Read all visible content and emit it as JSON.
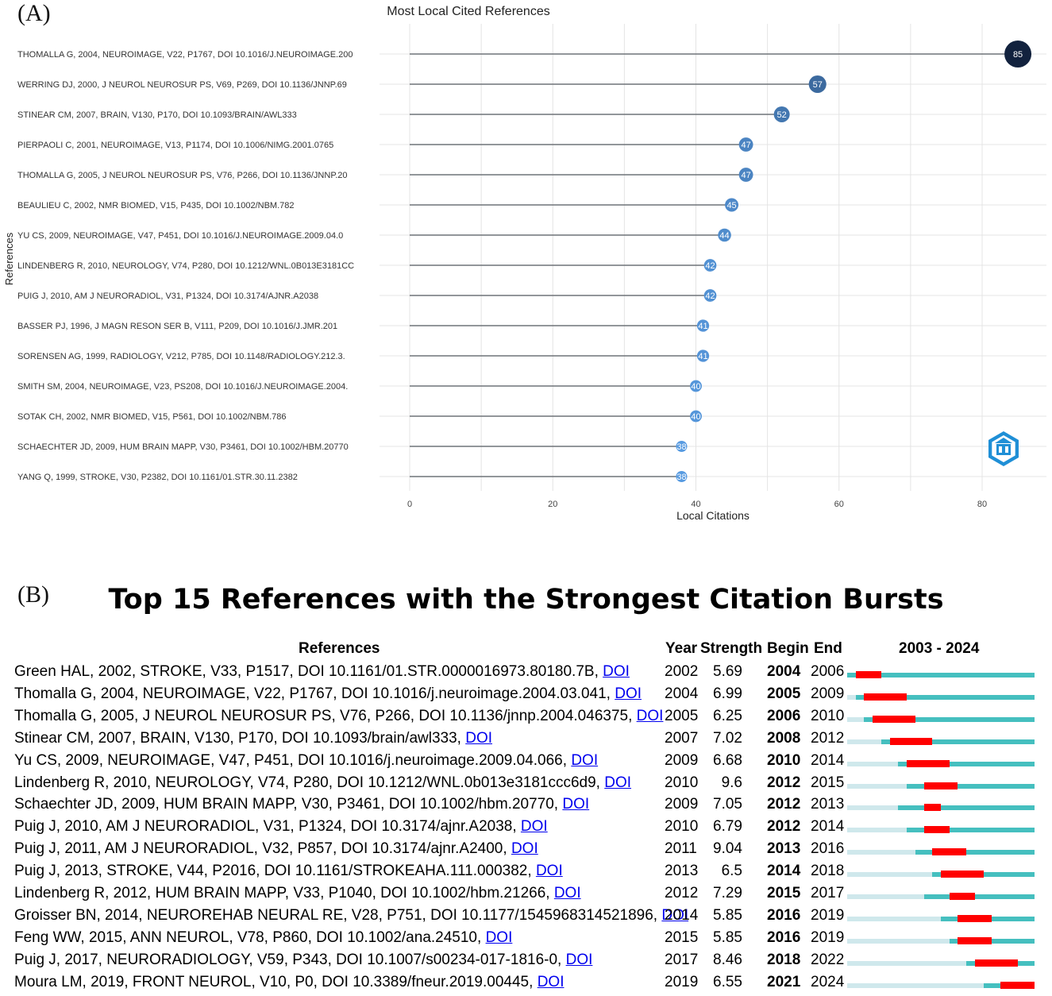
{
  "panel_a_label": "(A)",
  "panel_b_label": "(B)",
  "chart_data": [
    {
      "type": "lollipop",
      "title": "Most Local Cited References",
      "xlabel": "Local Citations",
      "ylabel": "References",
      "xlim": [
        0,
        85
      ],
      "xticks": [
        0,
        20,
        40,
        60,
        80
      ],
      "grid": true,
      "categories": [
        "THOMALLA G, 2004, NEUROIMAGE, V22, P1767, DOI 10.1016/J.NEUROIMAGE.200",
        "WERRING DJ, 2000, J NEUROL NEUROSUR PS, V69, P269, DOI 10.1136/JNNP.69",
        "STINEAR CM, 2007, BRAIN, V130, P170, DOI 10.1093/BRAIN/AWL333",
        "PIERPAOLI C, 2001, NEUROIMAGE, V13, P1174, DOI 10.1006/NIMG.2001.0765",
        "THOMALLA G, 2005, J NEUROL NEUROSUR PS, V76, P266, DOI 10.1136/JNNP.20",
        "BEAULIEU C, 2002, NMR BIOMED, V15, P435, DOI 10.1002/NBM.782",
        "YU CS, 2009, NEUROIMAGE, V47, P451, DOI 10.1016/J.NEUROIMAGE.2009.04.0",
        "LINDENBERG R, 2010, NEUROLOGY, V74, P280, DOI 10.1212/WNL.0B013E3181CC",
        "PUIG J, 2010, AM J NEURORADIOL, V31, P1324, DOI 10.3174/AJNR.A2038",
        "BASSER PJ, 1996, J MAGN RESON SER B, V111, P209, DOI 10.1016/J.JMR.201",
        "SORENSEN AG, 1999, RADIOLOGY, V212, P785, DOI 10.1148/RADIOLOGY.212.3.",
        "SMITH SM, 2004, NEUROIMAGE, V23, PS208, DOI 10.1016/J.NEUROIMAGE.2004.",
        "SOTAK CH, 2002, NMR BIOMED, V15, P561, DOI 10.1002/NBM.786",
        "SCHAECHTER JD, 2009, HUM BRAIN MAPP, V30, P3461, DOI 10.1002/HBM.20770",
        "YANG Q, 1999, STROKE, V30, P2382, DOI 10.1161/01.STR.30.11.2382"
      ],
      "values": [
        85,
        57,
        52,
        47,
        47,
        45,
        44,
        42,
        42,
        41,
        41,
        40,
        40,
        38,
        38
      ]
    },
    {
      "type": "table",
      "title": "Top 15 References with the Strongest Citation Bursts",
      "columns": [
        "References",
        "Year",
        "Strength",
        "Begin",
        "End",
        "2003 - 2024"
      ],
      "range_start": 2003,
      "range_end": 2024,
      "colors": {
        "burst": "#ff0000",
        "active": "#45bfbf",
        "inactive": "#cfe8ec"
      },
      "link_text": "DOI",
      "rows": [
        {
          "ref": "Green HAL, 2002, STROKE, V33, P1517, DOI 10.1161/01.STR.0000016973.80180.7B,",
          "year": 2002,
          "strength": "5.69",
          "begin": 2004,
          "end": 2006
        },
        {
          "ref": "Thomalla G, 2004, NEUROIMAGE, V22, P1767, DOI 10.1016/j.neuroimage.2004.03.041,",
          "year": 2004,
          "strength": "6.99",
          "begin": 2005,
          "end": 2009
        },
        {
          "ref": "Thomalla G, 2005, J NEUROL NEUROSUR PS, V76, P266, DOI 10.1136/jnnp.2004.046375,",
          "year": 2005,
          "strength": "6.25",
          "begin": 2006,
          "end": 2010
        },
        {
          "ref": "Stinear CM, 2007, BRAIN, V130, P170, DOI 10.1093/brain/awl333,",
          "year": 2007,
          "strength": "7.02",
          "begin": 2008,
          "end": 2012
        },
        {
          "ref": "Yu CS, 2009, NEUROIMAGE, V47, P451, DOI 10.1016/j.neuroimage.2009.04.066,",
          "year": 2009,
          "strength": "6.68",
          "begin": 2010,
          "end": 2014
        },
        {
          "ref": "Lindenberg R, 2010, NEUROLOGY, V74, P280, DOI 10.1212/WNL.0b013e3181ccc6d9,",
          "year": 2010,
          "strength": "9.6",
          "begin": 2012,
          "end": 2015
        },
        {
          "ref": "Schaechter JD, 2009, HUM BRAIN MAPP, V30, P3461, DOI 10.1002/hbm.20770,",
          "year": 2009,
          "strength": "7.05",
          "begin": 2012,
          "end": 2013
        },
        {
          "ref": "Puig J, 2010, AM J NEURORADIOL, V31, P1324, DOI 10.3174/ajnr.A2038,",
          "year": 2010,
          "strength": "6.79",
          "begin": 2012,
          "end": 2014
        },
        {
          "ref": "Puig J, 2011, AM J NEURORADIOL, V32, P857, DOI 10.3174/ajnr.A2400,",
          "year": 2011,
          "strength": "9.04",
          "begin": 2013,
          "end": 2016
        },
        {
          "ref": "Puig J, 2013, STROKE, V44, P2016, DOI 10.1161/STROKEAHA.111.000382,",
          "year": 2013,
          "strength": "6.5",
          "begin": 2014,
          "end": 2018
        },
        {
          "ref": "Lindenberg R, 2012, HUM BRAIN MAPP, V33, P1040, DOI 10.1002/hbm.21266,",
          "year": 2012,
          "strength": "7.29",
          "begin": 2015,
          "end": 2017
        },
        {
          "ref": "Groisser BN, 2014, NEUROREHAB NEURAL RE, V28, P751, DOI 10.1177/1545968314521896,",
          "year": 2014,
          "strength": "5.85",
          "begin": 2016,
          "end": 2019
        },
        {
          "ref": "Feng WW, 2015, ANN NEUROL, V78, P860, DOI 10.1002/ana.24510,",
          "year": 2015,
          "strength": "5.85",
          "begin": 2016,
          "end": 2019
        },
        {
          "ref": "Puig J, 2017, NEURORADIOLOGY, V59, P343, DOI 10.1007/s00234-017-1816-0,",
          "year": 2017,
          "strength": "8.46",
          "begin": 2018,
          "end": 2022
        },
        {
          "ref": "Moura LM, 2019, FRONT NEUROL, V10, P0, DOI 10.3389/fneur.2019.00445,",
          "year": 2019,
          "strength": "6.55",
          "begin": 2021,
          "end": 2024
        }
      ]
    }
  ]
}
